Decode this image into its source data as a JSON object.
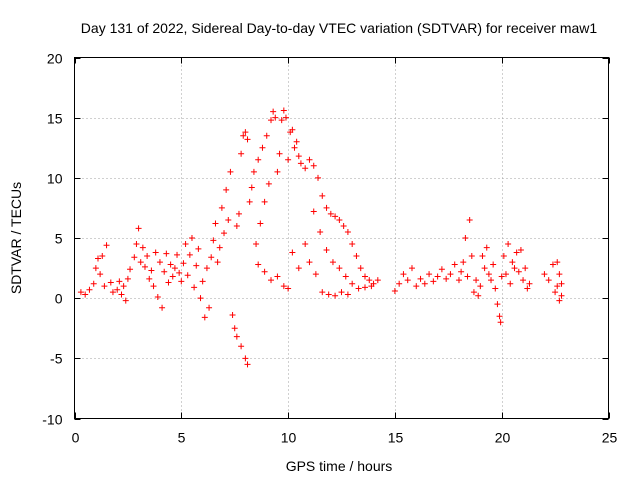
{
  "chart_data": {
    "type": "scatter",
    "title": "Day 131 of 2022, Sidereal Day-to-day VTEC variation (SDTVAR) for receiver maw1",
    "xlabel": "GPS time / hours",
    "ylabel": "SDTVAR / TECUs",
    "xlim": [
      0,
      25
    ],
    "ylim": [
      -10,
      20
    ],
    "xticks": [
      0,
      5,
      10,
      15,
      20,
      25
    ],
    "yticks": [
      -10,
      -5,
      0,
      5,
      10,
      15,
      20
    ],
    "grid": true,
    "marker": "+",
    "series": [
      {
        "name": "maw1",
        "color": "#ff0000",
        "points": [
          [
            0.3,
            0.5
          ],
          [
            0.5,
            0.3
          ],
          [
            0.7,
            0.7
          ],
          [
            0.9,
            1.2
          ],
          [
            1.0,
            2.5
          ],
          [
            1.1,
            3.3
          ],
          [
            1.2,
            2.0
          ],
          [
            1.3,
            3.5
          ],
          [
            1.4,
            1.0
          ],
          [
            1.5,
            4.4
          ],
          [
            1.7,
            1.3
          ],
          [
            1.8,
            0.5
          ],
          [
            2.0,
            0.7
          ],
          [
            2.1,
            1.4
          ],
          [
            2.2,
            0.3
          ],
          [
            2.3,
            1.0
          ],
          [
            2.4,
            -0.2
          ],
          [
            2.5,
            1.6
          ],
          [
            2.6,
            2.4
          ],
          [
            2.8,
            3.4
          ],
          [
            2.9,
            4.5
          ],
          [
            3.0,
            5.8
          ],
          [
            3.1,
            3.0
          ],
          [
            3.2,
            4.2
          ],
          [
            3.3,
            2.6
          ],
          [
            3.4,
            3.5
          ],
          [
            3.5,
            1.6
          ],
          [
            3.6,
            2.3
          ],
          [
            3.7,
            1.0
          ],
          [
            3.8,
            3.8
          ],
          [
            3.9,
            0.1
          ],
          [
            4.0,
            3.0
          ],
          [
            4.1,
            -0.8
          ],
          [
            4.2,
            2.2
          ],
          [
            4.3,
            3.7
          ],
          [
            4.4,
            1.3
          ],
          [
            4.5,
            2.8
          ],
          [
            4.6,
            1.8
          ],
          [
            4.7,
            2.5
          ],
          [
            4.8,
            3.6
          ],
          [
            4.9,
            2.1
          ],
          [
            5.0,
            1.4
          ],
          [
            5.1,
            2.9
          ],
          [
            5.2,
            4.5
          ],
          [
            5.3,
            1.9
          ],
          [
            5.4,
            3.6
          ],
          [
            5.5,
            5.0
          ],
          [
            5.6,
            0.9
          ],
          [
            5.7,
            2.7
          ],
          [
            5.8,
            4.1
          ],
          [
            5.9,
            0.0
          ],
          [
            6.0,
            1.4
          ],
          [
            6.1,
            -1.6
          ],
          [
            6.2,
            2.5
          ],
          [
            6.3,
            -0.8
          ],
          [
            6.4,
            3.4
          ],
          [
            6.5,
            4.8
          ],
          [
            6.6,
            6.2
          ],
          [
            6.7,
            3.0
          ],
          [
            6.8,
            4.2
          ],
          [
            6.9,
            7.5
          ],
          [
            7.0,
            5.4
          ],
          [
            7.1,
            9.0
          ],
          [
            7.2,
            6.5
          ],
          [
            7.3,
            10.5
          ],
          [
            7.4,
            -1.4
          ],
          [
            7.5,
            -2.5
          ],
          [
            7.6,
            6.0
          ],
          [
            7.7,
            7.0
          ],
          [
            7.8,
            12.0
          ],
          [
            7.9,
            13.5
          ],
          [
            8.0,
            13.8
          ],
          [
            8.1,
            13.2
          ],
          [
            8.0,
            -5.0
          ],
          [
            8.1,
            -5.5
          ],
          [
            7.8,
            -4.0
          ],
          [
            7.6,
            -3.2
          ],
          [
            8.2,
            8.0
          ],
          [
            8.3,
            9.2
          ],
          [
            8.4,
            10.5
          ],
          [
            8.5,
            4.5
          ],
          [
            8.6,
            11.5
          ],
          [
            8.7,
            6.2
          ],
          [
            8.8,
            12.5
          ],
          [
            8.9,
            8.0
          ],
          [
            9.0,
            13.5
          ],
          [
            9.1,
            9.5
          ],
          [
            9.2,
            14.8
          ],
          [
            9.3,
            15.5
          ],
          [
            9.4,
            15.0
          ],
          [
            9.5,
            10.5
          ],
          [
            9.6,
            12.0
          ],
          [
            9.7,
            14.8
          ],
          [
            9.8,
            15.6
          ],
          [
            9.9,
            15.0
          ],
          [
            10.0,
            11.5
          ],
          [
            10.1,
            13.8
          ],
          [
            10.2,
            14.0
          ],
          [
            10.3,
            12.5
          ],
          [
            10.4,
            13.0
          ],
          [
            10.5,
            11.8
          ],
          [
            10.6,
            11.2
          ],
          [
            10.8,
            10.8
          ],
          [
            11.0,
            11.5
          ],
          [
            11.2,
            11.0
          ],
          [
            11.4,
            10.0
          ],
          [
            11.6,
            8.5
          ],
          [
            11.8,
            7.5
          ],
          [
            12.0,
            7.0
          ],
          [
            12.2,
            6.8
          ],
          [
            12.4,
            6.5
          ],
          [
            12.6,
            6.0
          ],
          [
            12.8,
            5.5
          ],
          [
            13.0,
            4.5
          ],
          [
            13.2,
            3.5
          ],
          [
            13.4,
            2.5
          ],
          [
            13.6,
            1.8
          ],
          [
            13.8,
            1.5
          ],
          [
            14.0,
            1.2
          ],
          [
            14.2,
            1.5
          ],
          [
            10.2,
            3.8
          ],
          [
            10.5,
            2.5
          ],
          [
            10.8,
            4.5
          ],
          [
            11.0,
            3.0
          ],
          [
            11.3,
            2.0
          ],
          [
            11.6,
            0.5
          ],
          [
            11.9,
            0.3
          ],
          [
            12.2,
            0.2
          ],
          [
            12.5,
            0.5
          ],
          [
            12.8,
            0.3
          ],
          [
            11.2,
            7.2
          ],
          [
            11.5,
            5.5
          ],
          [
            11.8,
            4.0
          ],
          [
            12.1,
            3.0
          ],
          [
            12.4,
            2.5
          ],
          [
            12.7,
            1.8
          ],
          [
            13.0,
            1.2
          ],
          [
            13.3,
            0.8
          ],
          [
            13.6,
            0.9
          ],
          [
            13.9,
            1.0
          ],
          [
            8.6,
            2.8
          ],
          [
            8.9,
            2.2
          ],
          [
            9.2,
            1.5
          ],
          [
            9.5,
            1.8
          ],
          [
            9.8,
            1.0
          ],
          [
            10.0,
            0.8
          ],
          [
            15.0,
            0.6
          ],
          [
            15.2,
            1.2
          ],
          [
            15.4,
            2.0
          ],
          [
            15.6,
            1.5
          ],
          [
            15.8,
            2.5
          ],
          [
            16.0,
            1.0
          ],
          [
            16.2,
            1.6
          ],
          [
            16.4,
            1.2
          ],
          [
            16.6,
            2.0
          ],
          [
            16.8,
            1.4
          ],
          [
            17.0,
            1.8
          ],
          [
            17.2,
            2.4
          ],
          [
            17.4,
            1.6
          ],
          [
            17.6,
            2.0
          ],
          [
            17.8,
            2.8
          ],
          [
            18.0,
            1.5
          ],
          [
            18.1,
            2.2
          ],
          [
            18.2,
            3.0
          ],
          [
            18.3,
            5.0
          ],
          [
            18.4,
            1.8
          ],
          [
            18.5,
            6.5
          ],
          [
            18.6,
            3.5
          ],
          [
            18.7,
            0.5
          ],
          [
            18.8,
            1.5
          ],
          [
            18.9,
            0.2
          ],
          [
            19.0,
            1.0
          ],
          [
            19.1,
            3.5
          ],
          [
            19.2,
            2.5
          ],
          [
            19.3,
            4.2
          ],
          [
            19.4,
            2.0
          ],
          [
            19.5,
            1.5
          ],
          [
            19.6,
            2.8
          ],
          [
            19.7,
            0.8
          ],
          [
            19.8,
            -0.5
          ],
          [
            19.9,
            -1.5
          ],
          [
            19.95,
            -2.0
          ],
          [
            20.0,
            1.8
          ],
          [
            20.1,
            3.5
          ],
          [
            20.2,
            2.0
          ],
          [
            20.3,
            4.5
          ],
          [
            20.4,
            1.2
          ],
          [
            20.5,
            3.0
          ],
          [
            20.6,
            2.5
          ],
          [
            20.7,
            3.8
          ],
          [
            20.8,
            2.2
          ],
          [
            20.9,
            4.0
          ],
          [
            21.0,
            1.5
          ],
          [
            21.1,
            2.5
          ],
          [
            21.2,
            0.8
          ],
          [
            21.3,
            1.2
          ],
          [
            22.0,
            2.0
          ],
          [
            22.2,
            1.5
          ],
          [
            22.4,
            2.8
          ],
          [
            22.5,
            0.5
          ],
          [
            22.6,
            3.0
          ],
          [
            22.7,
            2.0
          ],
          [
            22.8,
            1.2
          ],
          [
            22.8,
            0.2
          ],
          [
            22.6,
            1.0
          ],
          [
            22.7,
            -0.2
          ]
        ]
      }
    ]
  }
}
